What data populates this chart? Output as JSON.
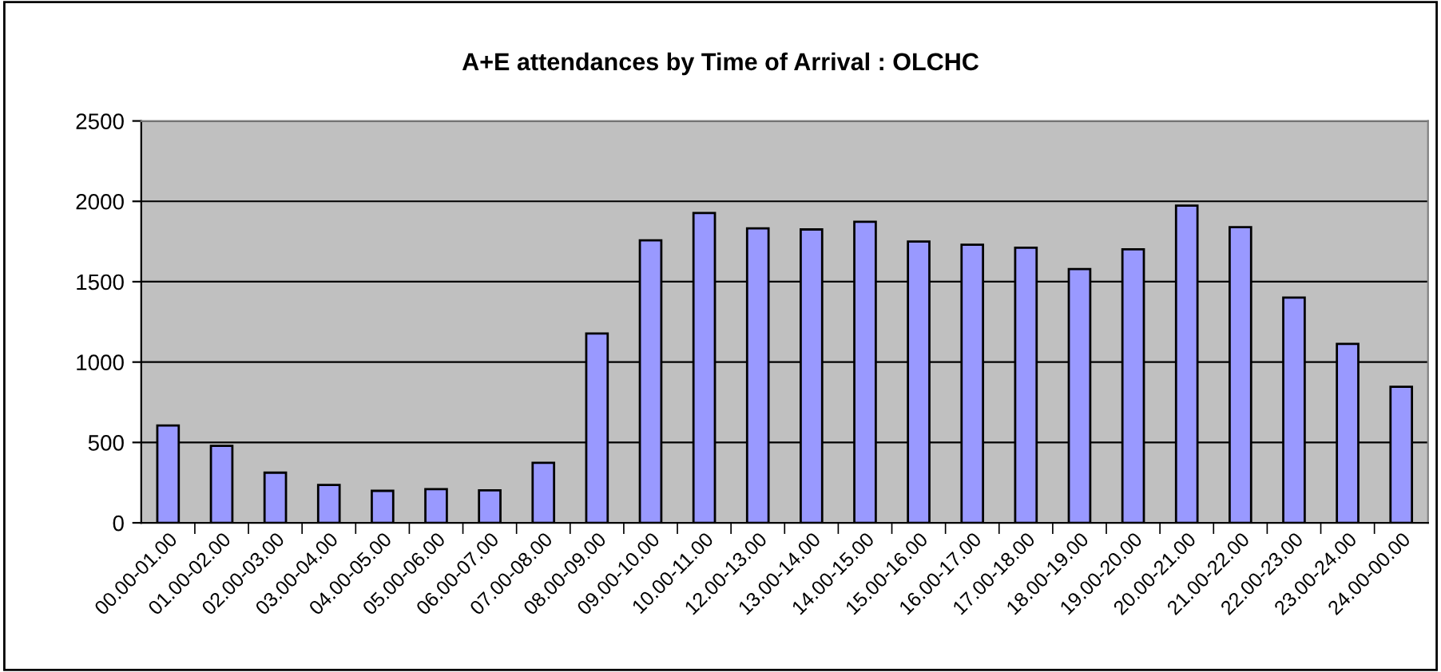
{
  "chart_data": {
    "type": "bar",
    "title": "A+E attendances by Time of Arrival : OLCHC",
    "categories": [
      "00.00-01.00",
      "01.00-02.00",
      "02.00-03.00",
      "03.00-04.00",
      "04.00-05.00",
      "05.00-06.00",
      "06.00-07.00",
      "07.00-08.00",
      "08.00-09.00",
      "09.00-10.00",
      "10.00-11.00",
      "12.00-13.00",
      "13.00-14.00",
      "14.00-15.00",
      "15.00-16.00",
      "16.00-17.00",
      "17.00-18.00",
      "18.00-19.00",
      "19.00-20.00",
      "20.00-21.00",
      "21.00-22.00",
      "22.00-23.00",
      "23.00-24.00",
      "24.00-00.00"
    ],
    "values": [
      606,
      479,
      312,
      236,
      199,
      209,
      202,
      373,
      1178,
      1757,
      1928,
      1832,
      1825,
      1873,
      1750,
      1730,
      1712,
      1579,
      1702,
      1973,
      1839,
      1401,
      1113,
      846
    ],
    "color": "#9999ff",
    "ylim": [
      0,
      2500
    ],
    "yticks": [
      0,
      500,
      1000,
      1500,
      2000,
      2500
    ],
    "grid": "y",
    "legend": false
  }
}
